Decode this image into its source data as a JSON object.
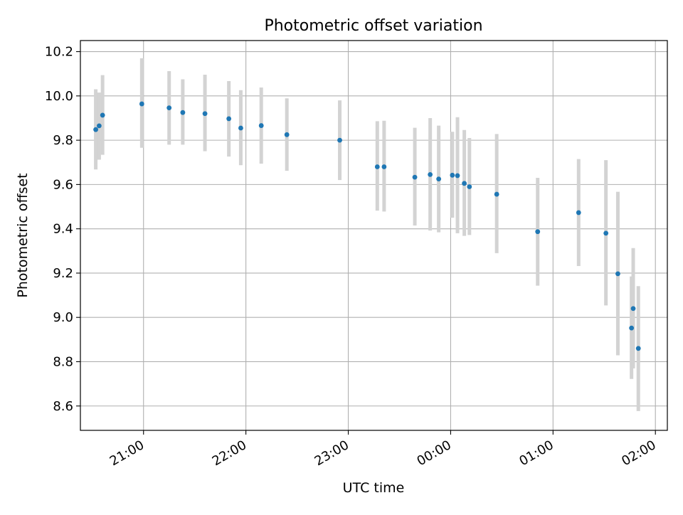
{
  "chart_data": {
    "type": "scatter",
    "title": "Photometric offset variation",
    "xlabel": "UTC time",
    "ylabel": "Photometric offset",
    "x_axis_kind": "time",
    "xlim": [
      "20:23",
      "02:07"
    ],
    "ylim": [
      8.49,
      10.25
    ],
    "grid": true,
    "point_color": "#1f77b4",
    "errorbar_color": "#d3d3d3",
    "x_ticks": [
      "21:00",
      "22:00",
      "23:00",
      "00:00",
      "01:00",
      "02:00"
    ],
    "y_ticks": [
      "8.6",
      "8.8",
      "9.0",
      "9.2",
      "9.4",
      "9.6",
      "9.8",
      "10.0",
      "10.2"
    ],
    "points": [
      {
        "t": "20:32",
        "y": 9.848,
        "lo": 9.668,
        "hi": 10.03
      },
      {
        "t": "20:34",
        "y": 9.865,
        "lo": 9.712,
        "hi": 10.015
      },
      {
        "t": "20:36",
        "y": 9.913,
        "lo": 9.734,
        "hi": 10.094
      },
      {
        "t": "20:59",
        "y": 9.964,
        "lo": 9.766,
        "hi": 10.17
      },
      {
        "t": "21:15",
        "y": 9.946,
        "lo": 9.78,
        "hi": 10.112
      },
      {
        "t": "21:23",
        "y": 9.925,
        "lo": 9.78,
        "hi": 10.075
      },
      {
        "t": "21:36",
        "y": 9.92,
        "lo": 9.75,
        "hi": 10.096
      },
      {
        "t": "21:50",
        "y": 9.897,
        "lo": 9.726,
        "hi": 10.067
      },
      {
        "t": "21:57",
        "y": 9.855,
        "lo": 9.687,
        "hi": 10.026
      },
      {
        "t": "22:09",
        "y": 9.866,
        "lo": 9.694,
        "hi": 10.038
      },
      {
        "t": "22:24",
        "y": 9.825,
        "lo": 9.662,
        "hi": 9.989
      },
      {
        "t": "22:55",
        "y": 9.8,
        "lo": 9.62,
        "hi": 9.98
      },
      {
        "t": "23:17",
        "y": 9.68,
        "lo": 9.482,
        "hi": 9.886
      },
      {
        "t": "23:21",
        "y": 9.68,
        "lo": 9.478,
        "hi": 9.888
      },
      {
        "t": "23:39",
        "y": 9.633,
        "lo": 9.415,
        "hi": 9.856
      },
      {
        "t": "23:48",
        "y": 9.645,
        "lo": 9.392,
        "hi": 9.9
      },
      {
        "t": "23:53",
        "y": 9.625,
        "lo": 9.384,
        "hi": 9.866
      },
      {
        "t": "00:01",
        "y": 9.642,
        "lo": 9.45,
        "hi": 9.838
      },
      {
        "t": "00:04",
        "y": 9.64,
        "lo": 9.38,
        "hi": 9.904
      },
      {
        "t": "00:08",
        "y": 9.605,
        "lo": 9.368,
        "hi": 9.846
      },
      {
        "t": "00:11",
        "y": 9.59,
        "lo": 9.372,
        "hi": 9.81
      },
      {
        "t": "00:27",
        "y": 9.556,
        "lo": 9.29,
        "hi": 9.828
      },
      {
        "t": "00:51",
        "y": 9.387,
        "lo": 9.143,
        "hi": 9.63
      },
      {
        "t": "01:15",
        "y": 9.473,
        "lo": 9.232,
        "hi": 9.715
      },
      {
        "t": "01:31",
        "y": 9.38,
        "lo": 9.054,
        "hi": 9.71
      },
      {
        "t": "01:38",
        "y": 9.197,
        "lo": 8.829,
        "hi": 9.567
      },
      {
        "t": "01:46",
        "y": 8.952,
        "lo": 8.722,
        "hi": 9.185
      },
      {
        "t": "01:47",
        "y": 9.04,
        "lo": 8.77,
        "hi": 9.313
      },
      {
        "t": "01:50",
        "y": 8.86,
        "lo": 8.577,
        "hi": 9.141
      }
    ]
  }
}
